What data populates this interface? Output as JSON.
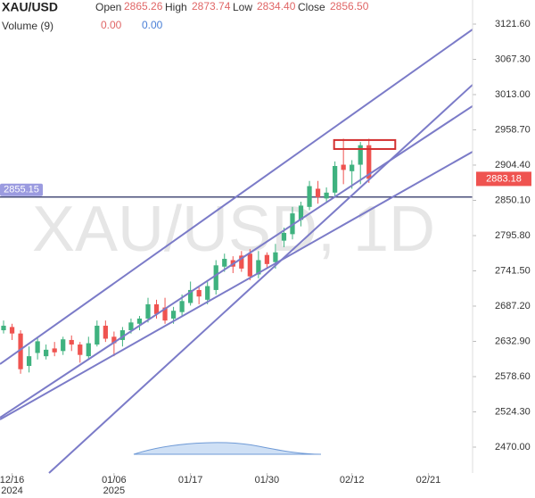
{
  "chart_data": {
    "type": "candlestick",
    "title": "XAU/USD",
    "watermark": "XAU/USD, 1D",
    "legend": {
      "open_label": "Open",
      "open": "2865.26",
      "high_label": "High",
      "high": "2873.74",
      "low_label": "Low",
      "low": "2834.40",
      "close_label": "Close",
      "close": "2856.50",
      "volume_label": "Volume (9)",
      "volume_a": "0.00",
      "volume_b": "0.00"
    },
    "x": [
      0,
      1,
      2,
      3,
      4,
      5,
      6,
      7,
      8,
      9,
      10,
      11,
      12,
      13,
      14,
      15,
      16,
      17,
      18,
      19,
      20,
      21,
      22,
      23,
      24,
      25,
      26,
      27,
      28,
      29,
      30,
      31,
      32,
      33,
      34,
      35,
      36,
      37,
      38,
      39,
      40,
      41,
      42,
      43
    ],
    "open": [
      2650,
      2655,
      2645,
      2595,
      2615,
      2610,
      2622,
      2618,
      2635,
      2628,
      2610,
      2628,
      2657,
      2640,
      2635,
      2650,
      2660,
      2668,
      2690,
      2685,
      2668,
      2678,
      2692,
      2712,
      2697,
      2712,
      2748,
      2758,
      2765,
      2768,
      2736,
      2766,
      2755,
      2788,
      2798,
      2820,
      2840,
      2868,
      2853,
      2862,
      2905,
      2895,
      2905,
      2935
    ],
    "high": [
      2665,
      2660,
      2650,
      2625,
      2640,
      2628,
      2632,
      2640,
      2642,
      2632,
      2640,
      2665,
      2665,
      2648,
      2655,
      2668,
      2672,
      2700,
      2697,
      2700,
      2686,
      2705,
      2725,
      2718,
      2725,
      2758,
      2768,
      2764,
      2772,
      2775,
      2772,
      2770,
      2783,
      2808,
      2840,
      2848,
      2880,
      2880,
      2870,
      2910,
      2945,
      2912,
      2940,
      2945
    ],
    "low": [
      2645,
      2635,
      2583,
      2585,
      2605,
      2605,
      2610,
      2612,
      2618,
      2600,
      2605,
      2625,
      2632,
      2610,
      2625,
      2645,
      2650,
      2662,
      2668,
      2660,
      2660,
      2672,
      2688,
      2690,
      2690,
      2705,
      2740,
      2738,
      2740,
      2727,
      2730,
      2745,
      2745,
      2778,
      2790,
      2810,
      2835,
      2845,
      2848,
      2855,
      2875,
      2868,
      2875,
      2877
    ],
    "close": [
      2657,
      2645,
      2590,
      2610,
      2633,
      2620,
      2616,
      2636,
      2628,
      2612,
      2630,
      2657,
      2637,
      2630,
      2650,
      2662,
      2668,
      2690,
      2675,
      2665,
      2680,
      2695,
      2712,
      2702,
      2718,
      2750,
      2760,
      2748,
      2745,
      2733,
      2758,
      2752,
      2770,
      2800,
      2830,
      2842,
      2872,
      2855,
      2862,
      2903,
      2897,
      2905,
      2935,
      2883.18
    ],
    "up_color": "#3fb27f",
    "down_color": "#ef5350",
    "xlim": [
      -0.42,
      55.2
    ],
    "xticks": [
      {
        "value": 1,
        "label": "12/16"
      },
      {
        "value": 13,
        "label": "01/06"
      },
      {
        "value": 22,
        "label": "01/17"
      },
      {
        "value": 31,
        "label": "01/30"
      },
      {
        "value": 41,
        "label": "02/12"
      },
      {
        "value": 50,
        "label": "02/21"
      }
    ],
    "xtick_years": [
      {
        "value": 1,
        "label": "2024"
      },
      {
        "value": 13,
        "label": "2025"
      }
    ],
    "ylim": [
      2430.1,
      3158.7
    ],
    "yticks": [
      {
        "value": 2470,
        "label": "2470.00"
      },
      {
        "value": 2524.3,
        "label": "2524.30"
      },
      {
        "value": 2578.6,
        "label": "2578.60"
      },
      {
        "value": 2632.9,
        "label": "2632.90"
      },
      {
        "value": 2687.2,
        "label": "2687.20"
      },
      {
        "value": 2741.5,
        "label": "2741.50"
      },
      {
        "value": 2795.8,
        "label": "2795.80"
      },
      {
        "value": 2850.1,
        "label": "2850.10"
      },
      {
        "value": 2904.4,
        "label": "2904.40"
      },
      {
        "value": 2958.7,
        "label": "2958.70"
      },
      {
        "value": 3013,
        "label": "3013.00"
      },
      {
        "value": 3067.3,
        "label": "3067.30"
      },
      {
        "value": 3121.6,
        "label": "3121.60"
      }
    ],
    "hline": 2855.15,
    "trendline_color": "#7b7bc8",
    "trendlines": [
      {
        "x": [
          -0.42,
          55.2
        ],
        "y": [
          2597.9,
          3113.4
        ]
      },
      {
        "x": [
          -0.42,
          55.2
        ],
        "y": [
          2515.4,
          2995.4
        ]
      },
      {
        "x": [
          5.35,
          55.2
        ],
        "y": [
          2430.1,
          3028.2
        ]
      },
      {
        "x": [
          -0.42,
          55.2
        ],
        "y": [
          2512.6,
          2925.0
        ]
      }
    ],
    "box": {
      "x": [
        38.9,
        46.1
      ],
      "y": [
        2929.2,
        2943.0
      ],
      "color": "#d32f2f"
    }
  }
}
